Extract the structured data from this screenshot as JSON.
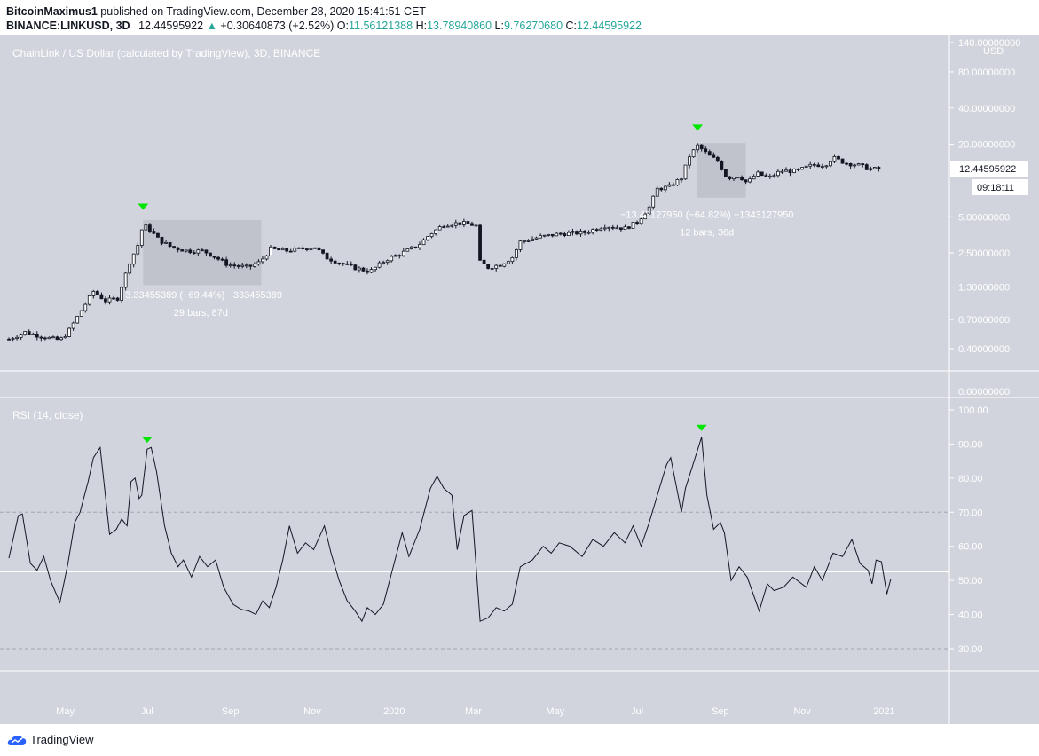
{
  "header": {
    "author": "BitcoinMaximus1",
    "published": " published on TradingView.com, December 28, 2020 15:41:51 CET",
    "symbol": "BINANCE:LINKUSD, 3D",
    "last": "12.44595922",
    "change_arrow": "▲",
    "change": "+0.30640873 (+2.52%)",
    "o_label": "O:",
    "o": "11.56121388",
    "h_label": "H:",
    "h": "13.78940860",
    "l_label": "L:",
    "l": "9.76270680",
    "c_label": "C:",
    "c": "12.44595922"
  },
  "footer": {
    "brand": "TradingView"
  },
  "colors": {
    "pane_bg": "#d1d4dc",
    "axis_bg": "#d1d4dc",
    "grid": "#ffffff",
    "candle": "#131722",
    "candle_up_body": "#ffffff",
    "marker": "#00e600",
    "rect": "#b2b5be",
    "label_text": "#ffffff",
    "rsi_line": "#131722",
    "level_line": "#a3a6af"
  },
  "chart_data": [
    {
      "type": "candlestick",
      "title": "ChainLink / US Dollar (calculated by TradingView), 3D, BINANCE",
      "ylabel": "USD",
      "scale": "log",
      "ylim": [
        0.3,
        140
      ],
      "y_ticks": [
        {
          "value": 140,
          "label": "140.00000000"
        },
        {
          "value": 80,
          "label": "80.00000000"
        },
        {
          "value": 40,
          "label": "40.00000000"
        },
        {
          "value": 20,
          "label": "20.00000000"
        },
        {
          "value": 5,
          "label": "5.00000000"
        },
        {
          "value": 2.5,
          "label": "2.50000000"
        },
        {
          "value": 1.3,
          "label": "1.30000000"
        },
        {
          "value": 0.7,
          "label": "0.70000000"
        },
        {
          "value": 0.4,
          "label": "0.40000000"
        }
      ],
      "zero_label": "0.00000000",
      "price_tag": "12.44595922",
      "countdown": "09:18:11",
      "close_path": [
        [
          "2020-03-20",
          0.48
        ],
        [
          "2020-04-01",
          0.55
        ],
        [
          "2020-04-15",
          0.5
        ],
        [
          "2020-04-27",
          0.47
        ],
        [
          "2020-05-03",
          0.55
        ],
        [
          "2020-05-12",
          0.8
        ],
        [
          "2020-05-22",
          1.2
        ],
        [
          "2020-05-31",
          1.0
        ],
        [
          "2020-06-09",
          1.05
        ],
        [
          "2020-06-18",
          2.1
        ],
        [
          "2020-06-24",
          2.9
        ],
        [
          "2020-06-28",
          4.3
        ],
        [
          "2020-07-03",
          3.9
        ],
        [
          "2020-07-10",
          3.2
        ],
        [
          "2020-07-19",
          2.8
        ],
        [
          "2020-07-31",
          2.6
        ],
        [
          "2020-08-12",
          2.6
        ],
        [
          "2020-08-21",
          2.3
        ],
        [
          "2020-08-30",
          2.0
        ],
        [
          "2020-09-14",
          1.9
        ],
        [
          "2020-09-23",
          2.1
        ],
        [
          "2020-10-01",
          2.7
        ],
        [
          "2020-10-12",
          2.6
        ],
        [
          "2020-10-23",
          2.7
        ],
        [
          "2020-11-03",
          2.8
        ],
        [
          "2020-11-11",
          2.3
        ],
        [
          "2020-11-20",
          2.1
        ],
        [
          "2020-12-01",
          1.9
        ],
        [
          "2020-12-14",
          1.75
        ],
        [
          "2020-12-26",
          2.2
        ],
        [
          "2021-01-07",
          2.5
        ],
        [
          "2021-01-19",
          2.9
        ],
        [
          "2021-01-28",
          3.6
        ],
        [
          "2021-02-07",
          4.3
        ],
        [
          "2021-02-16",
          4.4
        ],
        [
          "2021-02-24",
          4.4
        ],
        [
          "2021-03-03",
          4.2
        ],
        [
          "2021-03-06",
          2.1
        ],
        [
          "2021-03-12",
          1.9
        ],
        [
          "2021-03-21",
          2.0
        ],
        [
          "2021-03-30",
          2.3
        ],
        [
          "2021-04-05",
          3.1
        ],
        [
          "2021-04-20",
          3.4
        ],
        [
          "2021-05-04",
          3.6
        ],
        [
          "2021-05-23",
          3.7
        ],
        [
          "2021-06-07",
          4.2
        ],
        [
          "2021-06-22",
          4.0
        ],
        [
          "2021-07-01",
          4.5
        ],
        [
          "2021-07-10",
          6.0
        ],
        [
          "2021-07-16",
          8.5
        ],
        [
          "2021-07-25",
          8.9
        ],
        [
          "2021-08-03",
          10.5
        ],
        [
          "2021-08-09",
          16.0
        ],
        [
          "2021-08-15",
          19.5
        ],
        [
          "2021-08-24",
          16.0
        ],
        [
          "2021-08-30",
          14.5
        ],
        [
          "2021-09-06",
          10.5
        ],
        [
          "2021-09-15",
          11.0
        ],
        [
          "2021-09-21",
          9.5
        ],
        [
          "2021-09-28",
          11.5
        ],
        [
          "2021-10-07",
          10.5
        ],
        [
          "2021-10-16",
          12.0
        ],
        [
          "2021-10-28",
          12.0
        ],
        [
          "2021-11-09",
          13.5
        ],
        [
          "2021-11-18",
          13.5
        ],
        [
          "2021-11-24",
          15.5
        ],
        [
          "2021-12-03",
          14.0
        ],
        [
          "2021-12-12",
          13.5
        ],
        [
          "2021-12-21",
          12.5
        ],
        [
          "2021-12-28",
          12.44
        ]
      ],
      "annotations": [
        {
          "label": "−3.33455389 (−69.44%) −333455389",
          "sublabel": "29 bars, 87d"
        },
        {
          "label": "−13.43127950 (−64.82%) −1343127950",
          "sublabel": "12 bars, 36d"
        }
      ],
      "top_markers": [
        "2020-06-28",
        "2021-08-15"
      ]
    },
    {
      "type": "line",
      "title": "RSI (14, close)",
      "ylim": [
        24,
        100
      ],
      "y_ticks": [
        {
          "value": 100,
          "label": "100.00"
        },
        {
          "value": 90,
          "label": "90.00"
        },
        {
          "value": 80,
          "label": "80.00"
        },
        {
          "value": 70,
          "label": "70.00"
        },
        {
          "value": 60,
          "label": "60.00"
        },
        {
          "value": 50,
          "label": "50.00"
        },
        {
          "value": 40,
          "label": "40.00"
        },
        {
          "value": 30,
          "label": "30.00"
        }
      ],
      "levels": [
        70,
        30
      ],
      "mid_line": 52.5,
      "points": [
        [
          "2020-03-20",
          56.5
        ],
        [
          "2020-03-27",
          69
        ],
        [
          "2020-03-30",
          69.5
        ],
        [
          "2020-04-05",
          55
        ],
        [
          "2020-04-10",
          53
        ],
        [
          "2020-04-15",
          57
        ],
        [
          "2020-04-20",
          50
        ],
        [
          "2020-04-27",
          43.5
        ],
        [
          "2020-05-03",
          55
        ],
        [
          "2020-05-08",
          67
        ],
        [
          "2020-05-12",
          70
        ],
        [
          "2020-05-18",
          79
        ],
        [
          "2020-05-22",
          86
        ],
        [
          "2020-05-27",
          89
        ],
        [
          "2020-06-03",
          63.5
        ],
        [
          "2020-06-08",
          65
        ],
        [
          "2020-06-12",
          68
        ],
        [
          "2020-06-16",
          66
        ],
        [
          "2020-06-19",
          79
        ],
        [
          "2020-06-22",
          80
        ],
        [
          "2020-06-25",
          74
        ],
        [
          "2020-06-27",
          75
        ],
        [
          "2020-07-01",
          88.5
        ],
        [
          "2020-07-04",
          89
        ],
        [
          "2020-07-08",
          82
        ],
        [
          "2020-07-14",
          66
        ],
        [
          "2020-07-19",
          58
        ],
        [
          "2020-07-24",
          54
        ],
        [
          "2020-07-28",
          56
        ],
        [
          "2020-08-03",
          51
        ],
        [
          "2020-08-09",
          57
        ],
        [
          "2020-08-15",
          54
        ],
        [
          "2020-08-21",
          56
        ],
        [
          "2020-08-27",
          48
        ],
        [
          "2020-09-03",
          43
        ],
        [
          "2020-09-09",
          41.5
        ],
        [
          "2020-09-15",
          41
        ],
        [
          "2020-09-20",
          40
        ],
        [
          "2020-09-25",
          44
        ],
        [
          "2020-09-30",
          42
        ],
        [
          "2020-10-05",
          48
        ],
        [
          "2020-10-10",
          56
        ],
        [
          "2020-10-15",
          66
        ],
        [
          "2020-10-21",
          58
        ],
        [
          "2020-10-27",
          61
        ],
        [
          "2020-11-02",
          59
        ],
        [
          "2020-11-10",
          66
        ],
        [
          "2020-11-15",
          58
        ],
        [
          "2020-11-21",
          50
        ],
        [
          "2020-11-27",
          44
        ],
        [
          "2020-12-03",
          41
        ],
        [
          "2020-12-08",
          38
        ],
        [
          "2020-12-12",
          42
        ],
        [
          "2020-12-18",
          40
        ],
        [
          "2020-12-24",
          43
        ],
        [
          "2020-12-30",
          52
        ],
        [
          "2021-01-07",
          64
        ],
        [
          "2021-01-12",
          57
        ],
        [
          "2021-01-20",
          65
        ],
        [
          "2021-01-28",
          77
        ],
        [
          "2021-02-02",
          80.5
        ],
        [
          "2021-02-07",
          77
        ],
        [
          "2021-02-13",
          75
        ],
        [
          "2021-02-17",
          59
        ],
        [
          "2021-02-22",
          69
        ],
        [
          "2021-02-28",
          70.5
        ],
        [
          "2021-03-06",
          38
        ],
        [
          "2021-03-12",
          39
        ],
        [
          "2021-03-18",
          42
        ],
        [
          "2021-03-24",
          41
        ],
        [
          "2021-03-30",
          43
        ],
        [
          "2021-04-05",
          54
        ],
        [
          "2021-04-14",
          56
        ],
        [
          "2021-04-22",
          60
        ],
        [
          "2021-04-28",
          58
        ],
        [
          "2021-05-04",
          61
        ],
        [
          "2021-05-12",
          60
        ],
        [
          "2021-05-21",
          57
        ],
        [
          "2021-05-29",
          62
        ],
        [
          "2021-06-06",
          60
        ],
        [
          "2021-06-14",
          64
        ],
        [
          "2021-06-22",
          61
        ],
        [
          "2021-06-28",
          66
        ],
        [
          "2021-07-04",
          60
        ],
        [
          "2021-07-10",
          67
        ],
        [
          "2021-07-16",
          75
        ],
        [
          "2021-07-23",
          84
        ],
        [
          "2021-07-26",
          86
        ],
        [
          "2021-07-29",
          80
        ],
        [
          "2021-08-03",
          70
        ],
        [
          "2021-08-06",
          77
        ],
        [
          "2021-08-10",
          82
        ],
        [
          "2021-08-18",
          92
        ],
        [
          "2021-08-22",
          75
        ],
        [
          "2021-08-27",
          65
        ],
        [
          "2021-09-01",
          67
        ],
        [
          "2021-09-04",
          64
        ],
        [
          "2021-09-09",
          50
        ],
        [
          "2021-09-15",
          54
        ],
        [
          "2021-09-21",
          51
        ],
        [
          "2021-09-30",
          41
        ],
        [
          "2021-10-06",
          49
        ],
        [
          "2021-10-11",
          47
        ],
        [
          "2021-10-18",
          48
        ],
        [
          "2021-10-25",
          51
        ],
        [
          "2021-11-04",
          48
        ],
        [
          "2021-11-10",
          54
        ],
        [
          "2021-11-16",
          50
        ],
        [
          "2021-11-24",
          58
        ],
        [
          "2021-12-01",
          57
        ],
        [
          "2021-12-08",
          62
        ],
        [
          "2021-12-14",
          55
        ],
        [
          "2021-12-20",
          53
        ],
        [
          "2021-12-23",
          49
        ],
        [
          "2021-12-26",
          56
        ],
        [
          "2021-12-30",
          55.5
        ],
        [
          "2022-01-03",
          46
        ],
        [
          "2022-01-06",
          50.5
        ]
      ],
      "top_markers": [
        "2020-07-01",
        "2021-08-18"
      ]
    }
  ],
  "x_axis": {
    "ticks": [
      {
        "date": "2020-05-01",
        "label": "May"
      },
      {
        "date": "2020-07-01",
        "label": "Jul"
      },
      {
        "date": "2020-09-01",
        "label": "Sep"
      },
      {
        "date": "2020-11-01",
        "label": "Nov"
      },
      {
        "date": "2021-01-01",
        "label": "2020"
      },
      {
        "date": "2021-03-01",
        "label": "Mar"
      },
      {
        "date": "2021-05-01",
        "label": "May"
      },
      {
        "date": "2021-07-01",
        "label": "Jul"
      },
      {
        "date": "2021-09-01",
        "label": "Sep"
      },
      {
        "date": "2021-11-01",
        "label": "Nov"
      },
      {
        "date": "2022-01-01",
        "label": "2021"
      }
    ],
    "range": [
      "2020-03-18",
      "2022-02-14"
    ]
  }
}
